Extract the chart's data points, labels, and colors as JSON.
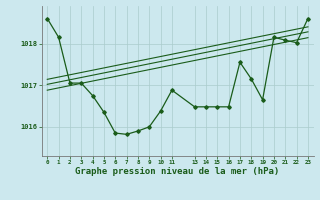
{
  "bg_color": "#cce8ee",
  "grid_color": "#aacccc",
  "line_color": "#1a5c1a",
  "marker_color": "#1a5c1a",
  "xlabel": "Graphe pression niveau de la mer (hPa)",
  "xlabel_fontsize": 6.5,
  "ylabel_values": [
    1016,
    1017,
    1018
  ],
  "xlim": [
    -0.5,
    23.5
  ],
  "ylim": [
    1015.3,
    1018.9
  ],
  "xticks": [
    0,
    1,
    2,
    3,
    4,
    5,
    6,
    7,
    8,
    9,
    10,
    11,
    13,
    14,
    15,
    16,
    17,
    18,
    19,
    20,
    21,
    22,
    23
  ],
  "xtick_labels": [
    "0",
    "1",
    "2",
    "3",
    "4",
    "5",
    "6",
    "7",
    "8",
    "9",
    "10",
    "11",
    "13",
    "14",
    "15",
    "16",
    "17",
    "18",
    "19",
    "20",
    "21",
    "22",
    "23"
  ],
  "series_x": [
    0,
    1,
    2,
    3,
    4,
    5,
    6,
    7,
    8,
    9,
    10,
    11,
    13,
    14,
    15,
    16,
    17,
    18,
    19,
    20,
    21,
    22,
    23
  ],
  "series_y": [
    1018.6,
    1018.15,
    1017.05,
    1017.05,
    1016.75,
    1016.35,
    1015.85,
    1015.82,
    1015.9,
    1016.0,
    1016.38,
    1016.88,
    1016.48,
    1016.48,
    1016.48,
    1016.48,
    1017.55,
    1017.15,
    1016.65,
    1018.15,
    1018.08,
    1018.02,
    1018.6
  ],
  "trend1_x": [
    0,
    23
  ],
  "trend1_y": [
    1017.02,
    1018.28
  ],
  "trend2_x": [
    0,
    23
  ],
  "trend2_y": [
    1016.88,
    1018.14
  ],
  "trend3_x": [
    0,
    23
  ],
  "trend3_y": [
    1017.14,
    1018.4
  ]
}
